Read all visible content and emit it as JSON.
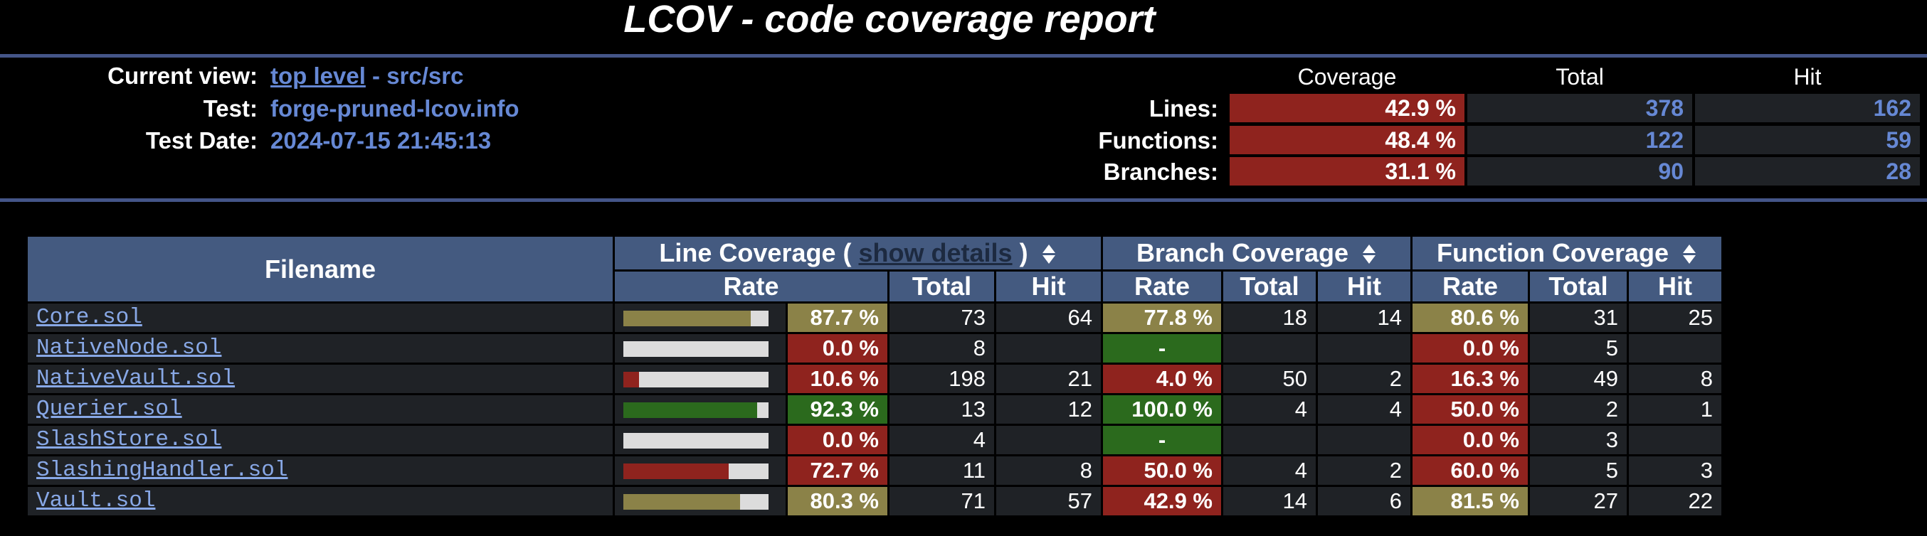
{
  "title": "LCOV - code coverage report",
  "header": {
    "current_view_label": "Current view:",
    "current_view_link": "top level",
    "current_view_path": "- src/src",
    "test_label": "Test:",
    "test_value": "forge-pruned-lcov.info",
    "test_date_label": "Test Date:",
    "test_date_value": "2024-07-15 21:45:13",
    "col_coverage": "Coverage",
    "col_total": "Total",
    "col_hit": "Hit",
    "lines_label": "Lines:",
    "lines_cov": "42.9 %",
    "lines_total": "378",
    "lines_hit": "162",
    "functions_label": "Functions:",
    "functions_cov": "48.4 %",
    "functions_total": "122",
    "functions_hit": "59",
    "branches_label": "Branches:",
    "branches_cov": "31.1 %",
    "branches_total": "90",
    "branches_hit": "28"
  },
  "table": {
    "filename_header": "Filename",
    "line_cov_header_a": "Line Coverage (",
    "show_details": "show details",
    "line_cov_header_b": ")",
    "branch_cov_header": "Branch Coverage",
    "function_cov_header": "Function Coverage",
    "rate": "Rate",
    "total": "Total",
    "hit": "Hit"
  },
  "rows": [
    {
      "file": "Core.sol",
      "line_pct": 87.7,
      "line_rate": "87.7 %",
      "line_total": "73",
      "line_hit": "64",
      "branch_rate": "77.8 %",
      "branch_total": "18",
      "branch_hit": "14",
      "func_rate": "80.6 %",
      "func_total": "31",
      "func_hit": "25"
    },
    {
      "file": "NativeNode.sol",
      "line_pct": 0.0,
      "line_rate": "0.0 %",
      "line_total": "8",
      "line_hit": "",
      "branch_rate": "-",
      "branch_total": "",
      "branch_hit": "",
      "func_rate": "0.0 %",
      "func_total": "5",
      "func_hit": ""
    },
    {
      "file": "NativeVault.sol",
      "line_pct": 10.6,
      "line_rate": "10.6 %",
      "line_total": "198",
      "line_hit": "21",
      "branch_rate": "4.0 %",
      "branch_total": "50",
      "branch_hit": "2",
      "func_rate": "16.3 %",
      "func_total": "49",
      "func_hit": "8"
    },
    {
      "file": "Querier.sol",
      "line_pct": 92.3,
      "line_rate": "92.3 %",
      "line_total": "13",
      "line_hit": "12",
      "branch_rate": "100.0 %",
      "branch_total": "4",
      "branch_hit": "4",
      "func_rate": "50.0 %",
      "func_total": "2",
      "func_hit": "1"
    },
    {
      "file": "SlashStore.sol",
      "line_pct": 0.0,
      "line_rate": "0.0 %",
      "line_total": "4",
      "line_hit": "",
      "branch_rate": "-",
      "branch_total": "",
      "branch_hit": "",
      "func_rate": "0.0 %",
      "func_total": "3",
      "func_hit": ""
    },
    {
      "file": "SlashingHandler.sol",
      "line_pct": 72.7,
      "line_rate": "72.7 %",
      "line_total": "11",
      "line_hit": "8",
      "branch_rate": "50.0 %",
      "branch_total": "4",
      "branch_hit": "2",
      "func_rate": "60.0 %",
      "func_total": "5",
      "func_hit": "3"
    },
    {
      "file": "Vault.sol",
      "line_pct": 80.3,
      "line_rate": "80.3 %",
      "line_total": "71",
      "line_hit": "57",
      "branch_rate": "42.9 %",
      "branch_total": "14",
      "branch_hit": "6",
      "func_rate": "81.5 %",
      "func_total": "27",
      "func_hit": "22"
    }
  ],
  "row_classes": [
    {
      "line": "med",
      "branch": "med",
      "func": "med"
    },
    {
      "line": "lo",
      "branch": "hi",
      "func": "lo"
    },
    {
      "line": "lo",
      "branch": "lo",
      "func": "lo"
    },
    {
      "line": "hi",
      "branch": "hi",
      "func": "lo"
    },
    {
      "line": "lo",
      "branch": "hi",
      "func": "lo"
    },
    {
      "line": "lo",
      "branch": "lo",
      "func": "lo"
    },
    {
      "line": "med",
      "branch": "lo",
      "func": "med"
    }
  ],
  "colors": {
    "hi": "#2b6a1d",
    "med": "#8b8248",
    "lo": "#8f231e",
    "header_bg": "#445a80",
    "link": "#6688d4"
  }
}
